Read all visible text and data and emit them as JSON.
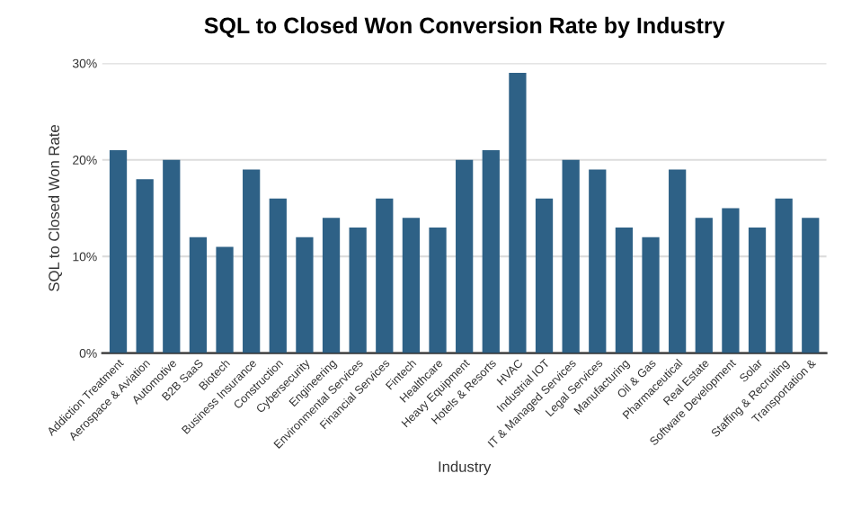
{
  "chart_data": {
    "type": "bar",
    "title": "SQL to Closed Won Conversion Rate by Industry",
    "xlabel": "Industry",
    "ylabel": "SQL to Closed Won Rate",
    "categories": [
      "Addiction Treatment",
      "Aerospace & Aviation",
      "Automotive",
      "B2B SaaS",
      "Biotech",
      "Business Insurance",
      "Construction",
      "Cybersecurity",
      "Engineering",
      "Environmental Services",
      "Financial Services",
      "Fintech",
      "Healthcare",
      "Heavy Equipment",
      "Hotels & Resorts",
      "HVAC",
      "Industrial IOT",
      "IT & Managed Services",
      "Legal Services",
      "Manufacturing",
      "Oil & Gas",
      "Pharmaceutical",
      "Real Estate",
      "Software Development",
      "Solar",
      "Staffing & Recruiting",
      "Transportation &"
    ],
    "values": [
      21,
      18,
      20,
      12,
      11,
      19,
      16,
      12,
      14,
      13,
      16,
      14,
      13,
      20,
      21,
      29,
      16,
      20,
      19,
      13,
      12,
      19,
      14,
      15,
      13,
      16,
      14
    ],
    "color": "#2e6186",
    "ylim": [
      0,
      30
    ],
    "yticks": [
      {
        "value": 0,
        "label": "0%"
      },
      {
        "value": 10,
        "label": "10%"
      },
      {
        "value": 20,
        "label": "20%"
      },
      {
        "value": 30,
        "label": "30%"
      }
    ],
    "grid": "y"
  }
}
